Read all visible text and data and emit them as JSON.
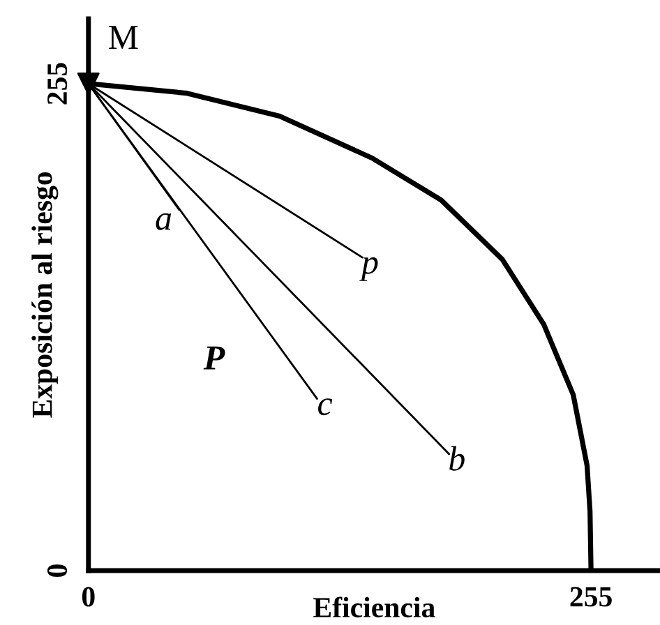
{
  "chart_data": {
    "type": "line",
    "xlabel": "Eficiencia",
    "ylabel": "Exposición al riesgo",
    "series": [
      {
        "color": "#000000",
        "x": [
          0,
          50,
          97,
          144,
          179,
          210,
          231,
          246,
          253,
          254.5,
          255
        ],
        "values": [
          255,
          250,
          238,
          216,
          194,
          163,
          129,
          92,
          55,
          31,
          0
        ]
      },
      {
        "color": "#000000",
        "x": [
          0,
          46
        ],
        "values": [
          255,
          189
        ]
      },
      {
        "color": "#000000",
        "x": [
          0,
          139
        ],
        "values": [
          255,
          164
        ]
      },
      {
        "color": "#000000",
        "x": [
          0,
          116
        ],
        "values": [
          255,
          90
        ]
      },
      {
        "color": "#000000",
        "x": [
          0,
          183
        ],
        "values": [
          255,
          61
        ]
      }
    ],
    "annotations": [
      {
        "text": "M",
        "x": 0,
        "y": 255
      },
      {
        "text": "a",
        "x": 46,
        "y": 189
      },
      {
        "text": "p",
        "x": 139,
        "y": 164
      },
      {
        "text": "c",
        "x": 116,
        "y": 90
      },
      {
        "text": "b",
        "x": 183,
        "y": 61
      },
      "P"
    ],
    "xlim": [
      0,
      290
    ],
    "ylim": [
      0,
      289
    ],
    "xticks": [
      0,
      255
    ],
    "yticks": [
      0,
      255
    ],
    "grid": false,
    "legend": false
  }
}
